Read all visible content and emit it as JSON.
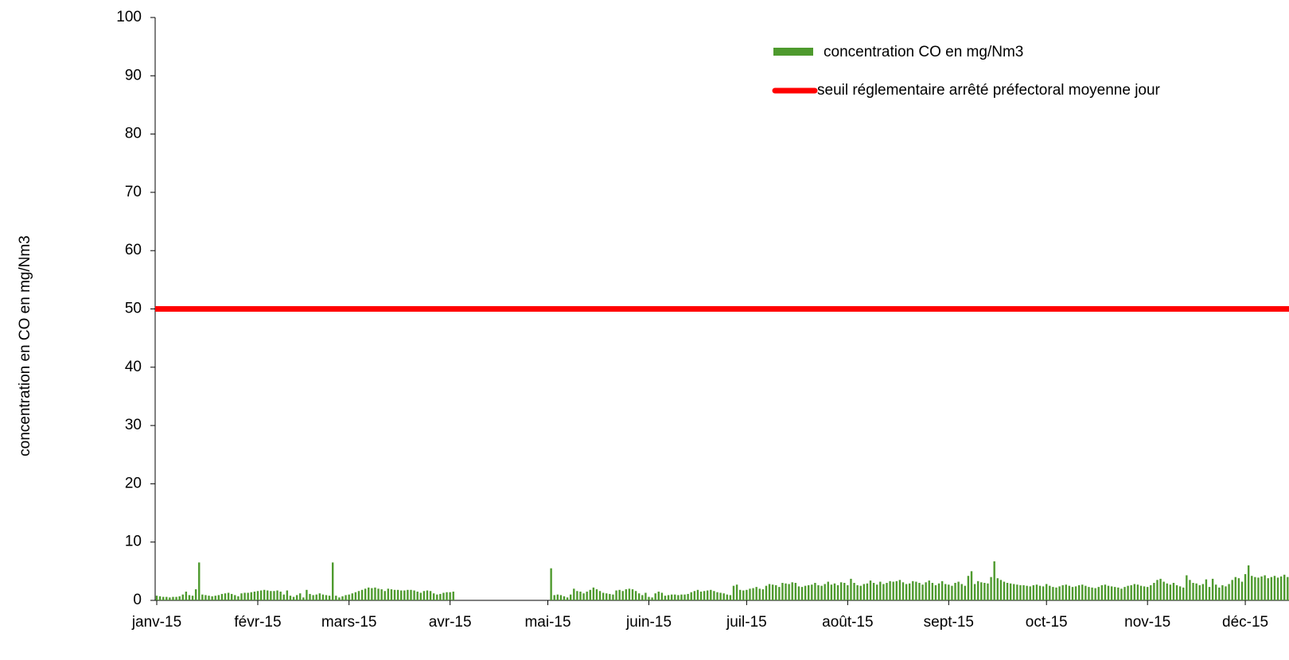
{
  "chart_data": {
    "type": "bar",
    "ylabel": "concentration en CO en mg/Nm3",
    "categories": [
      "janv-15",
      null,
      null,
      null,
      null,
      null,
      null,
      null,
      null,
      null,
      null,
      null,
      null,
      null,
      null,
      null,
      null,
      null,
      null,
      null,
      null,
      null,
      null,
      null,
      null,
      null,
      null,
      null,
      null,
      null,
      null,
      "févr-15",
      null,
      null,
      null,
      null,
      null,
      null,
      null,
      null,
      null,
      null,
      null,
      null,
      null,
      null,
      null,
      null,
      null,
      null,
      null,
      null,
      null,
      null,
      null,
      null,
      null,
      null,
      null,
      "mars-15",
      null,
      null,
      null,
      null,
      null,
      null,
      null,
      null,
      null,
      null,
      null,
      null,
      null,
      null,
      null,
      null,
      null,
      null,
      null,
      null,
      null,
      null,
      null,
      null,
      null,
      null,
      null,
      null,
      null,
      null,
      "avr-15",
      null,
      null,
      null,
      null,
      null,
      null,
      null,
      null,
      null,
      null,
      null,
      null,
      null,
      null,
      null,
      null,
      null,
      null,
      null,
      null,
      null,
      null,
      null,
      null,
      null,
      null,
      null,
      null,
      null,
      "mai-15",
      null,
      null,
      null,
      null,
      null,
      null,
      null,
      null,
      null,
      null,
      null,
      null,
      null,
      null,
      null,
      null,
      null,
      null,
      null,
      null,
      null,
      null,
      null,
      null,
      null,
      null,
      null,
      null,
      null,
      null,
      "juin-15",
      null,
      null,
      null,
      null,
      null,
      null,
      null,
      null,
      null,
      null,
      null,
      null,
      null,
      null,
      null,
      null,
      null,
      null,
      null,
      null,
      null,
      null,
      null,
      null,
      null,
      null,
      null,
      null,
      null,
      "juil-15",
      null,
      null,
      null,
      null,
      null,
      null,
      null,
      null,
      null,
      null,
      null,
      null,
      null,
      null,
      null,
      null,
      null,
      null,
      null,
      null,
      null,
      null,
      null,
      null,
      null,
      null,
      null,
      null,
      null,
      null,
      "août-15",
      null,
      null,
      null,
      null,
      null,
      null,
      null,
      null,
      null,
      null,
      null,
      null,
      null,
      null,
      null,
      null,
      null,
      null,
      null,
      null,
      null,
      null,
      null,
      null,
      null,
      null,
      null,
      null,
      null,
      null,
      "sept-15",
      null,
      null,
      null,
      null,
      null,
      null,
      null,
      null,
      null,
      null,
      null,
      null,
      null,
      null,
      null,
      null,
      null,
      null,
      null,
      null,
      null,
      null,
      null,
      null,
      null,
      null,
      null,
      null,
      null,
      "oct-15",
      null,
      null,
      null,
      null,
      null,
      null,
      null,
      null,
      null,
      null,
      null,
      null,
      null,
      null,
      null,
      null,
      null,
      null,
      null,
      null,
      null,
      null,
      null,
      null,
      null,
      null,
      null,
      null,
      null,
      null,
      "nov-15",
      null,
      null,
      null,
      null,
      null,
      null,
      null,
      null,
      null,
      null,
      null,
      null,
      null,
      null,
      null,
      null,
      null,
      null,
      null,
      null,
      null,
      null,
      null,
      null,
      null,
      null,
      null,
      null,
      null,
      "déc-15",
      null,
      null,
      null,
      null,
      null,
      null,
      null,
      null,
      null,
      null,
      null,
      null,
      null
    ],
    "series": [
      {
        "name": "concentration CO en  mg/Nm3",
        "color": "#4e9a2e",
        "values": [
          0.8,
          0.7,
          0.6,
          0.6,
          0.5,
          0.6,
          0.6,
          0.7,
          1.0,
          1.5,
          0.9,
          0.8,
          1.9,
          6.5,
          1.0,
          0.9,
          0.8,
          0.7,
          0.8,
          0.9,
          1.1,
          1.2,
          1.3,
          1.1,
          0.9,
          0.7,
          1.2,
          1.3,
          1.3,
          1.4,
          1.5,
          1.6,
          1.7,
          1.8,
          1.7,
          1.6,
          1.6,
          1.7,
          1.5,
          1.0,
          1.7,
          0.8,
          0.6,
          0.9,
          1.2,
          0.5,
          1.8,
          1.1,
          0.9,
          1.0,
          1.2,
          1.0,
          0.9,
          0.8,
          6.5,
          0.8,
          0.5,
          0.7,
          0.9,
          1.0,
          1.2,
          1.4,
          1.6,
          1.8,
          2.0,
          2.2,
          2.1,
          2.2,
          2.0,
          1.9,
          1.6,
          2.0,
          1.9,
          1.8,
          1.8,
          1.7,
          1.7,
          1.8,
          1.8,
          1.7,
          1.5,
          1.3,
          1.6,
          1.7,
          1.6,
          1.2,
          1.0,
          1.1,
          1.3,
          1.4,
          1.4,
          1.5,
          null,
          null,
          null,
          null,
          null,
          null,
          null,
          null,
          null,
          null,
          null,
          null,
          null,
          null,
          null,
          null,
          null,
          null,
          null,
          null,
          null,
          null,
          null,
          null,
          null,
          null,
          null,
          null,
          null,
          5.5,
          0.9,
          1.0,
          0.9,
          0.7,
          0.5,
          1.0,
          2.0,
          1.6,
          1.5,
          1.2,
          1.5,
          1.8,
          2.2,
          1.9,
          1.6,
          1.3,
          1.2,
          1.1,
          1.0,
          1.7,
          1.8,
          1.6,
          1.9,
          2.0,
          1.9,
          1.6,
          1.2,
          0.9,
          1.3,
          0.6,
          0.5,
          1.2,
          1.5,
          1.3,
          0.8,
          0.9,
          1.0,
          1.0,
          0.9,
          1.0,
          1.0,
          1.1,
          1.4,
          1.6,
          1.8,
          1.5,
          1.6,
          1.7,
          1.8,
          1.6,
          1.4,
          1.3,
          1.2,
          1.0,
          0.9,
          2.5,
          2.7,
          1.8,
          1.7,
          1.8,
          2.0,
          2.1,
          2.3,
          2.0,
          1.9,
          2.5,
          2.8,
          2.7,
          2.6,
          2.3,
          3.0,
          2.9,
          2.8,
          3.1,
          3.0,
          2.4,
          2.3,
          2.5,
          2.6,
          2.7,
          3.0,
          2.6,
          2.5,
          2.8,
          3.2,
          2.7,
          2.9,
          2.6,
          3.1,
          3.0,
          2.6,
          3.7,
          3.0,
          2.6,
          2.5,
          2.8,
          2.9,
          3.4,
          3.0,
          2.7,
          3.2,
          2.8,
          3.0,
          3.3,
          3.2,
          3.3,
          3.5,
          3.1,
          2.8,
          2.9,
          3.3,
          3.2,
          3.0,
          2.7,
          3.1,
          3.4,
          3.0,
          2.6,
          2.9,
          3.3,
          2.8,
          2.7,
          2.5,
          3.0,
          3.2,
          2.8,
          2.5,
          4.2,
          5.0,
          2.8,
          3.3,
          3.1,
          3.0,
          2.9,
          4.0,
          6.7,
          3.8,
          3.5,
          3.2,
          3.0,
          2.9,
          2.8,
          2.7,
          2.6,
          2.6,
          2.5,
          2.4,
          2.6,
          2.7,
          2.5,
          2.4,
          2.8,
          2.5,
          2.3,
          2.2,
          2.4,
          2.6,
          2.7,
          2.5,
          2.3,
          2.4,
          2.6,
          2.7,
          2.5,
          2.3,
          2.2,
          2.1,
          2.3,
          2.6,
          2.7,
          2.5,
          2.4,
          2.3,
          2.2,
          2.0,
          2.3,
          2.5,
          2.6,
          2.8,
          2.7,
          2.5,
          2.4,
          2.3,
          2.6,
          3.0,
          3.5,
          3.7,
          3.2,
          2.9,
          2.7,
          3.0,
          2.6,
          2.4,
          2.2,
          4.3,
          3.5,
          3.0,
          2.9,
          2.6,
          2.8,
          3.6,
          2.3,
          3.7,
          2.7,
          2.2,
          2.6,
          2.4,
          2.8,
          3.5,
          4.0,
          3.8,
          3.2,
          4.5,
          6.0,
          4.2,
          4.0,
          3.9,
          4.1,
          4.3,
          3.8,
          4.0,
          4.2,
          3.9,
          4.1,
          4.4,
          4.0
        ]
      }
    ],
    "threshold": {
      "name": "seuil réglementaire arrêté préfectoral moyenne jour",
      "value": 50,
      "color": "#ff0000"
    },
    "ylim": [
      0,
      100
    ],
    "yticks": [
      0,
      10,
      20,
      30,
      40,
      50,
      60,
      70,
      80,
      90,
      100
    ],
    "grid": false
  }
}
